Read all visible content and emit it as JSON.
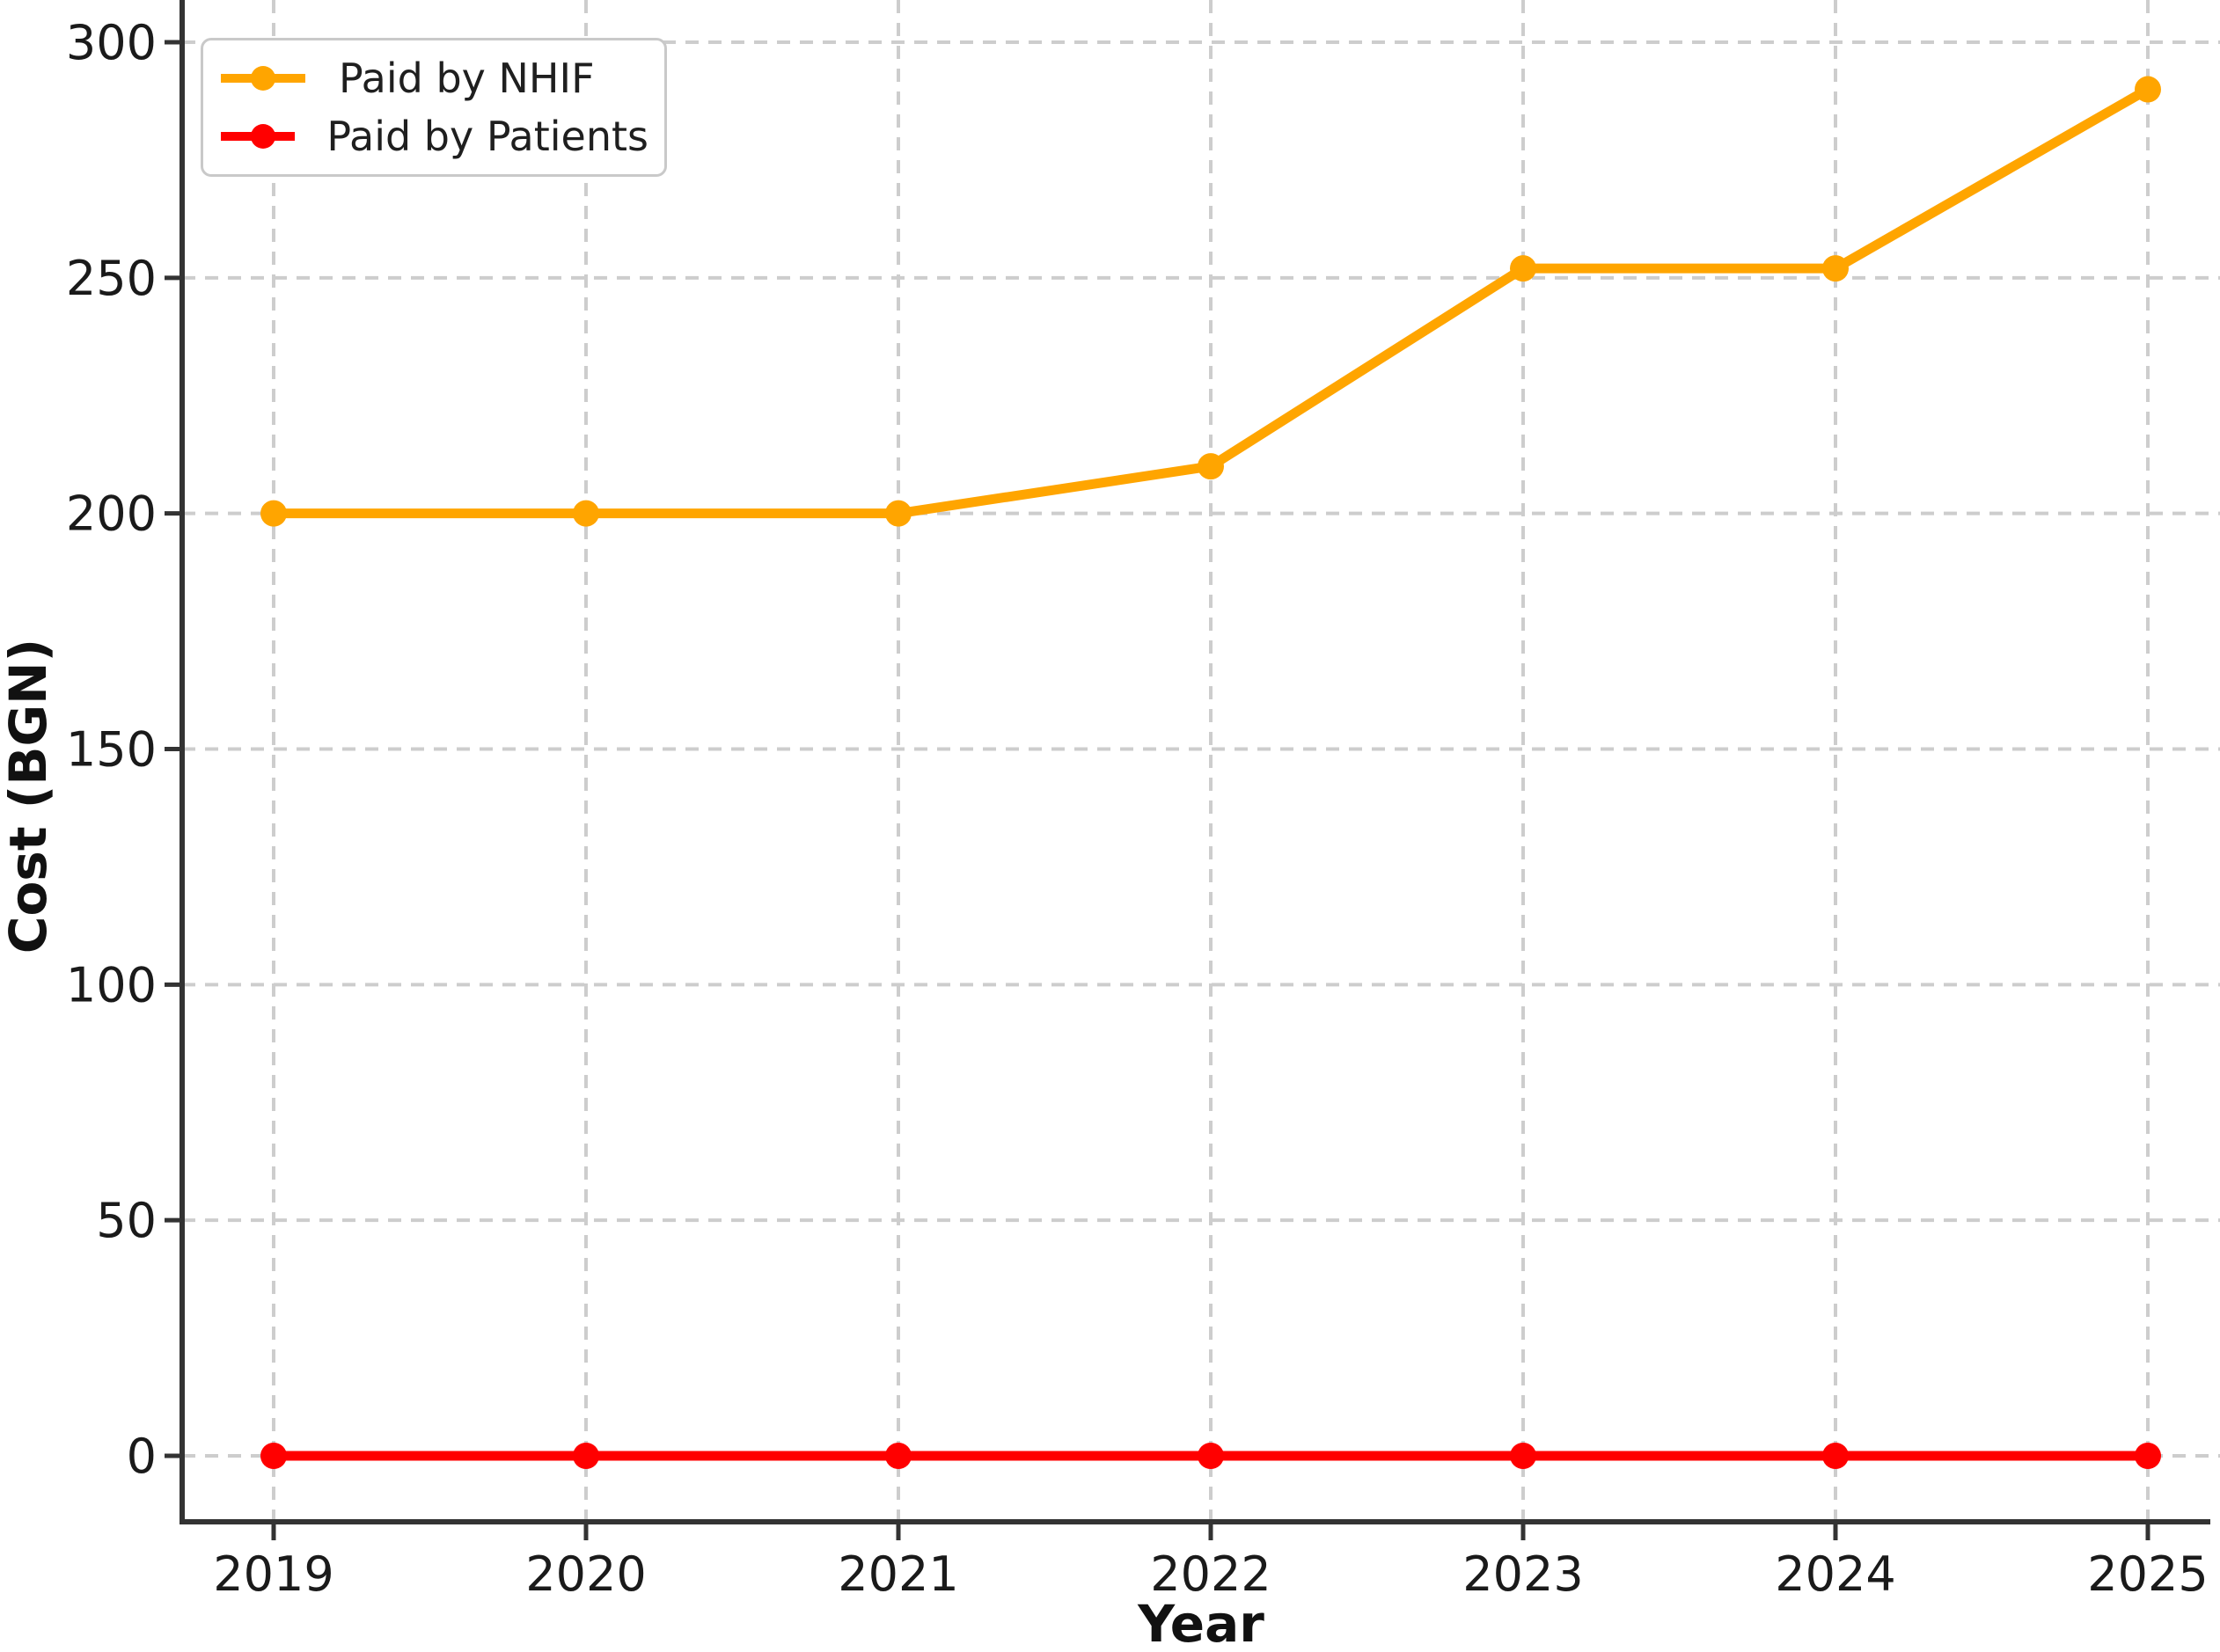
{
  "colors": {
    "nhif_orange": "#FFA500",
    "patients_red": "#FF0000",
    "grid": "#cdcdcd",
    "spine": "#333333",
    "tick_text": "#1a1a1a"
  },
  "legend": {
    "position": "upper-left"
  },
  "chart_data": {
    "type": "line",
    "title": "",
    "xlabel": "Year",
    "ylabel": "Cost (BGN)",
    "x": [
      2019,
      2020,
      2021,
      2022,
      2023,
      2024,
      2025
    ],
    "xtick_labels": [
      "2019",
      "2020",
      "2021",
      "2022",
      "2023",
      "2024",
      "2025"
    ],
    "yticks": [
      0,
      50,
      100,
      150,
      200,
      250,
      300
    ],
    "ylim": [
      -14,
      310
    ],
    "xlim": [
      2018.7,
      2025.23
    ],
    "grid": "dashed",
    "legend_position": "upper-left",
    "series": [
      {
        "name": "Paid by NHIF",
        "color": "#FFA500",
        "values": [
          200,
          200,
          200,
          210,
          252,
          252,
          290
        ]
      },
      {
        "name": "Paid by Patients",
        "color": "#FF0000",
        "values": [
          0,
          0,
          0,
          0,
          0,
          0,
          0
        ]
      }
    ]
  }
}
